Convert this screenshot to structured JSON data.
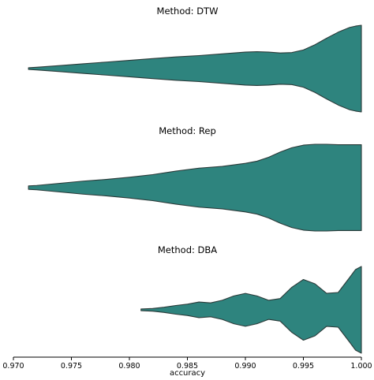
{
  "chart_data": {
    "type": "violin",
    "orientation": "horizontal",
    "fill_color": "#2e847e",
    "outline_color": "#2b3a39",
    "xlabel": "accuracy",
    "xlim": [
      0.97,
      1.0
    ],
    "xticks": [
      0.97,
      0.975,
      0.98,
      0.985,
      0.99,
      0.995,
      1.0
    ],
    "xtick_labels": [
      "0.970",
      "0.975",
      "0.980",
      "0.985",
      "0.990",
      "0.995",
      "1.000"
    ],
    "grid": false,
    "panels": [
      {
        "title": "Method: DTW",
        "density": [
          {
            "x": 0.9713,
            "w": 0.02
          },
          {
            "x": 0.972,
            "w": 0.03
          },
          {
            "x": 0.974,
            "w": 0.07
          },
          {
            "x": 0.976,
            "w": 0.11
          },
          {
            "x": 0.978,
            "w": 0.15
          },
          {
            "x": 0.98,
            "w": 0.19
          },
          {
            "x": 0.982,
            "w": 0.23
          },
          {
            "x": 0.984,
            "w": 0.27
          },
          {
            "x": 0.986,
            "w": 0.3
          },
          {
            "x": 0.988,
            "w": 0.34
          },
          {
            "x": 0.99,
            "w": 0.38
          },
          {
            "x": 0.991,
            "w": 0.39
          },
          {
            "x": 0.992,
            "w": 0.38
          },
          {
            "x": 0.993,
            "w": 0.36
          },
          {
            "x": 0.994,
            "w": 0.37
          },
          {
            "x": 0.995,
            "w": 0.43
          },
          {
            "x": 0.996,
            "w": 0.55
          },
          {
            "x": 0.997,
            "w": 0.7
          },
          {
            "x": 0.998,
            "w": 0.84
          },
          {
            "x": 0.999,
            "w": 0.95
          },
          {
            "x": 0.9995,
            "w": 0.98
          },
          {
            "x": 1.0,
            "w": 1.0
          }
        ]
      },
      {
        "title": "Method: Rep",
        "density": [
          {
            "x": 0.9713,
            "w": 0.04
          },
          {
            "x": 0.972,
            "w": 0.05
          },
          {
            "x": 0.974,
            "w": 0.1
          },
          {
            "x": 0.976,
            "w": 0.15
          },
          {
            "x": 0.978,
            "w": 0.19
          },
          {
            "x": 0.98,
            "w": 0.24
          },
          {
            "x": 0.982,
            "w": 0.3
          },
          {
            "x": 0.984,
            "w": 0.38
          },
          {
            "x": 0.986,
            "w": 0.45
          },
          {
            "x": 0.988,
            "w": 0.49
          },
          {
            "x": 0.99,
            "w": 0.56
          },
          {
            "x": 0.991,
            "w": 0.61
          },
          {
            "x": 0.992,
            "w": 0.7
          },
          {
            "x": 0.993,
            "w": 0.82
          },
          {
            "x": 0.994,
            "w": 0.92
          },
          {
            "x": 0.995,
            "w": 0.98
          },
          {
            "x": 0.996,
            "w": 1.0
          },
          {
            "x": 0.997,
            "w": 1.0
          },
          {
            "x": 0.998,
            "w": 0.99
          },
          {
            "x": 0.999,
            "w": 0.99
          },
          {
            "x": 1.0,
            "w": 0.99
          }
        ]
      },
      {
        "title": "Method: DBA",
        "density": [
          {
            "x": 0.981,
            "w": 0.02
          },
          {
            "x": 0.982,
            "w": 0.03
          },
          {
            "x": 0.983,
            "w": 0.06
          },
          {
            "x": 0.984,
            "w": 0.1
          },
          {
            "x": 0.985,
            "w": 0.13
          },
          {
            "x": 0.986,
            "w": 0.18
          },
          {
            "x": 0.987,
            "w": 0.16
          },
          {
            "x": 0.988,
            "w": 0.22
          },
          {
            "x": 0.989,
            "w": 0.32
          },
          {
            "x": 0.99,
            "w": 0.38
          },
          {
            "x": 0.991,
            "w": 0.32
          },
          {
            "x": 0.992,
            "w": 0.22
          },
          {
            "x": 0.993,
            "w": 0.26
          },
          {
            "x": 0.994,
            "w": 0.52
          },
          {
            "x": 0.995,
            "w": 0.7
          },
          {
            "x": 0.996,
            "w": 0.6
          },
          {
            "x": 0.997,
            "w": 0.38
          },
          {
            "x": 0.998,
            "w": 0.4
          },
          {
            "x": 0.999,
            "w": 0.75
          },
          {
            "x": 0.9995,
            "w": 0.93
          },
          {
            "x": 1.0,
            "w": 1.0
          }
        ]
      }
    ]
  }
}
